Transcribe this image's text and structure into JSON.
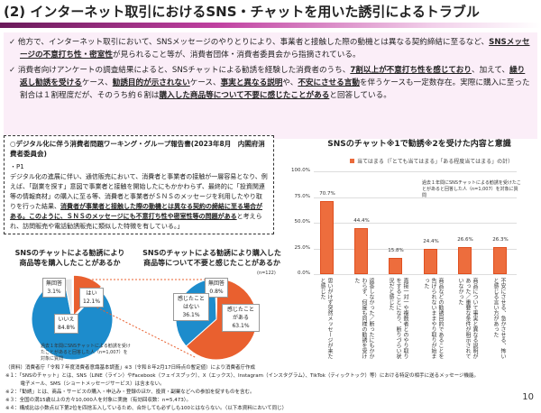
{
  "title": "(2) インターネット取引におけるSNS・チャットを用いた誘引によるトラブル",
  "summary": {
    "p1_a": "✓ 他方で、インターネット取引において、SNSメッセージのやりとりにより、事業者と接触した際の動機とは異なる契約締結に至るなど、",
    "p1_b": "SNSメッセージの不意打ち性・密室性",
    "p1_c": "が見られること等が、消費者団体・消費者委員会から指摘されている。",
    "p2_a": "✓ 消費者向けアンケートの調査結果によると、SNSチャットによる勧誘を経験した消費者のうち、",
    "p2_b": "7割以上が不意打ち性を感じており",
    "p2_c": "、加えて、",
    "p2_d": "繰り返し勧誘を受ける",
    "p2_e": "ケース、",
    "p2_f": "勧誘目的が示されない",
    "p2_g": "ケース、",
    "p2_h": "事実と異なる説明",
    "p2_i": "や、",
    "p2_j": "不安にさせる言動",
    "p2_k": "を伴うケースも一定数存在。実際に購入に至った割合は１割程度だが、そのうち約６割は",
    "p2_l": "購入した商品等について不要に感じたことがある",
    "p2_m": "と回答している。"
  },
  "quote": {
    "heading": "○デジタル化に伴う消費者問題ワーキング・グループ報告書(2023年8月　内閣府消費者委員会)",
    "page": "・P1",
    "t1": "デジタル化の進展に伴い、通信販売において、消費者と事業者の接触が一層容易となり、例えば、「副業を探す」意図で事業者と接触を開始したにもかかわらず、最終的に「投資関連等の情報商材」の購入に至る等、消費者と事業者がＳＮＳのメッセージを利用したやり取りを行った結果、",
    "t2": "消費者が事業者と接触した際の動機とは異なる契約の締結に至る場合がある。このように、ＳＮＳのメッセージにも不意打ち性や密室性等の問題がある",
    "t3": "と考えられ、訪問販売や電話勧誘販売に類似した特徴を有している。」"
  },
  "pie1": {
    "title": "SNSのチャットによる勧誘により\n商品等を購入したことがあるか",
    "slices": [
      {
        "label": "はい",
        "value": 12.1,
        "pct": "12.1%",
        "color": "#e9602f"
      },
      {
        "label": "いいえ",
        "value": 84.8,
        "pct": "84.8%",
        "color": "#1d8ccc"
      },
      {
        "label": "無回答",
        "value": 3.1,
        "pct": "3.1%",
        "color": "#e6e6e6"
      }
    ],
    "note": "過去１年間にSNSチャットによる勧誘を受けたことがあると回答した人（n=1,007）を対象に質問"
  },
  "pie2": {
    "title": "SNSのチャットによる勧誘により購入した商品等について不要と感じたことがあるか",
    "n": "(n=122)",
    "slices": [
      {
        "label": "感じたことがある",
        "value": 63.1,
        "pct": "63.1%",
        "color": "#e9602f"
      },
      {
        "label": "感じたことはない",
        "value": 36.1,
        "pct": "36.1%",
        "color": "#1d8ccc"
      },
      {
        "label": "無回答",
        "value": 0.8,
        "pct": "0.8%",
        "color": "#e6e6e6"
      }
    ]
  },
  "chart_data": {
    "type": "bar",
    "title": "SNSのチャット※1で勧誘※2を受けた内容と意識",
    "legend": "当てはまる（「とても当てはまる」「ある程度当てはまる」の計）",
    "note": "過去１年間にSNSチャットによる勧誘を受けたことがあると回答した人（n=1,007）を対象に質問",
    "ylim": [
      0,
      100
    ],
    "yticks": [
      "0.0%",
      "25.0%",
      "50.0%",
      "75.0%",
      "100.0%"
    ],
    "grid": true,
    "color": "#ed6d3d",
    "categories": [
      "思いがけず突然メッセージが来たと感じた",
      "返答しなかった／断ったにもかかわらず、何度も同様の勧誘を受けた",
      "直接一対一や複数者とのやり取りをすることになり、断りづらい状況だと感じた",
      "商品などの勧誘目的であることを告げられないままやり取りが始まった",
      "商品について事実と異なる説明があった／重要な条件が明示されていなかった",
      "不安にさせる、急かさせる、怖いと感じる言い方があった"
    ],
    "values": [
      70.7,
      44.4,
      15.8,
      24.4,
      26.6,
      26.3
    ],
    "labels": [
      "70.7%",
      "44.4%",
      "15.8%",
      "24.4%",
      "26.6%",
      "26.3%"
    ]
  },
  "footnotes": [
    "（資料）消費者庁「令和７年度消費者意識基本調査」※3（令和８年2月17日時点の暫定値）により消費者庁作成",
    "※１：「SNSのチャット」とは、SNS（LINE（ライン）やFacebook（フェイスブック）、X（エックス）、Instagram（インスタグラム）、TikTok（ティックトック）等）における特定の相手に送るメッセージ機能。",
    "　　　電子メール、SMS（ショートメッセージサービス）は含まない。",
    "※２：「勧誘」とは、商品・サービスの購入・申込み・登録のほか、投資・副業などへの参加を促すものを含む。",
    "※３：全国の満15歳以上の方々10,000人を対象に実施（有効回収数：n=5,473）。",
    "※４：構成比は小数点以下第2位を四捨五入しているため、合計しても必ずしも100とはならない。（以下本資料において同じ）"
  ],
  "page_number": "10"
}
